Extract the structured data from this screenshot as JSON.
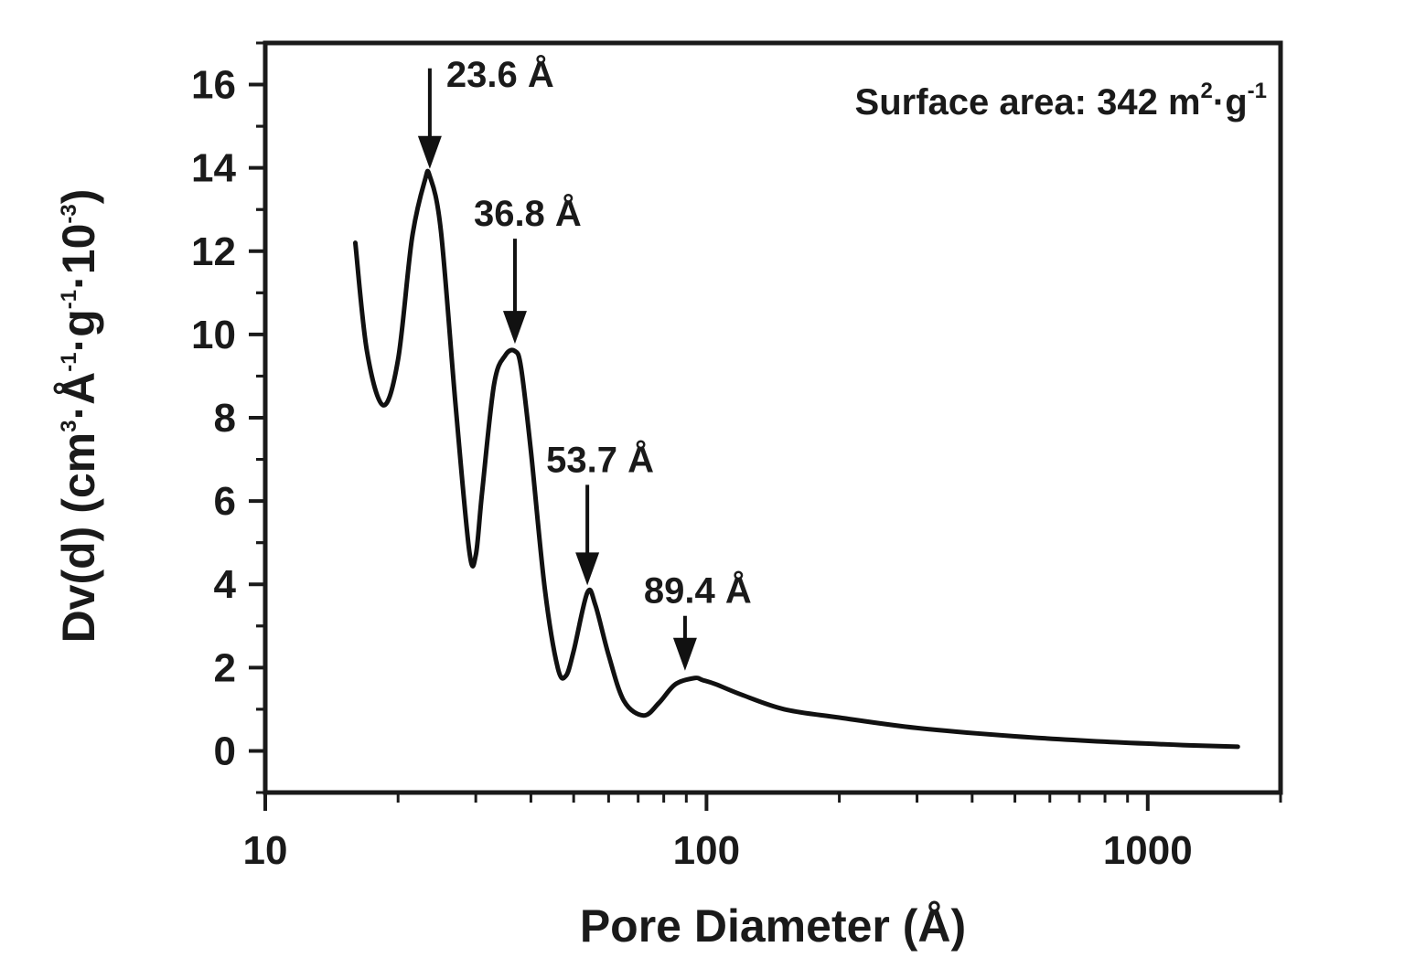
{
  "chart_data": {
    "type": "line",
    "xscale": "log",
    "xlim": [
      10,
      2000
    ],
    "ylim": [
      -1,
      17
    ],
    "xlabel": "Pore Diameter (Å)",
    "ylabel": {
      "prefix": "Dv(d) (cm",
      "sup1": "3",
      "mid1": "·Å",
      "sup2": "-1",
      "mid2": "·g",
      "sup3": "-1",
      "mid3": "·10",
      "sup4": "-3",
      "suffix": ")"
    },
    "xticks": [
      {
        "value": 10,
        "label": "10"
      },
      {
        "value": 100,
        "label": "100"
      },
      {
        "value": 1000,
        "label": "1000"
      }
    ],
    "yticks": [
      {
        "value": 0,
        "label": "0"
      },
      {
        "value": 2,
        "label": "2"
      },
      {
        "value": 4,
        "label": "4"
      },
      {
        "value": 6,
        "label": "6"
      },
      {
        "value": 8,
        "label": "8"
      },
      {
        "value": 10,
        "label": "10"
      },
      {
        "value": 12,
        "label": "12"
      },
      {
        "value": 14,
        "label": "14"
      },
      {
        "value": 16,
        "label": "16"
      }
    ],
    "grid": false,
    "series": [
      {
        "x": [
          16,
          17,
          18.5,
          20,
          21.5,
          23,
          23.6,
          25,
          27,
          29,
          30,
          31,
          33,
          35,
          36.8,
          38,
          40,
          43,
          46,
          48,
          50,
          53.7,
          56,
          60,
          65,
          72,
          78,
          85,
          94,
          98,
          105,
          120,
          150,
          200,
          300,
          500,
          800,
          1200,
          1600
        ],
        "y": [
          12.2,
          9.6,
          8.3,
          9.4,
          12.3,
          13.7,
          13.8,
          12.5,
          8.3,
          4.8,
          4.7,
          6.2,
          8.8,
          9.5,
          9.6,
          9.2,
          7.2,
          3.9,
          2.0,
          1.8,
          2.4,
          3.8,
          3.5,
          2.3,
          1.2,
          0.85,
          1.15,
          1.6,
          1.75,
          1.7,
          1.6,
          1.35,
          1.0,
          0.8,
          0.55,
          0.35,
          0.22,
          0.14,
          0.1
        ]
      }
    ],
    "annotations": [
      {
        "x": 23.6,
        "y": 13.8,
        "text": "23.6 Å"
      },
      {
        "x": 36.8,
        "y": 9.6,
        "text": "36.8 Å"
      },
      {
        "x": 53.7,
        "y": 3.8,
        "text": "53.7 Å"
      },
      {
        "x": 89.4,
        "y": 1.75,
        "text": "89.4 Å"
      }
    ],
    "note": {
      "prefix": "Surface area: 342 m",
      "sup1": "2",
      "mid": "·g",
      "sup2": "-1"
    },
    "colors": {
      "line": "#111111",
      "axis": "#1a1a1a"
    }
  }
}
